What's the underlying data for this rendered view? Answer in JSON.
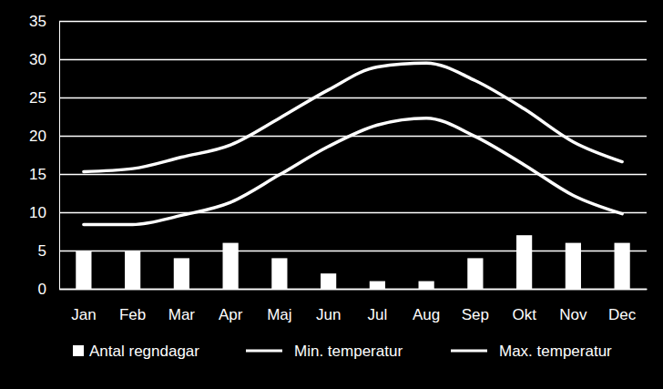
{
  "chart_data": {
    "type": "bar",
    "categories": [
      "Jan",
      "Feb",
      "Mar",
      "Apr",
      "Maj",
      "Jun",
      "Jul",
      "Aug",
      "Sep",
      "Okt",
      "Nov",
      "Dec"
    ],
    "series": [
      {
        "name": "Antal regndagar",
        "type": "bar",
        "color": "#ffffff",
        "values": [
          5,
          5,
          4,
          6,
          4,
          2,
          1,
          1,
          4,
          7,
          6,
          6
        ]
      },
      {
        "name": "Min. temperatur",
        "type": "line",
        "color": "#ffffff",
        "values": [
          8.4,
          8.4,
          9.6,
          11.3,
          14.9,
          18.6,
          21.4,
          22.3,
          19.9,
          16.2,
          12.2,
          9.8
        ]
      },
      {
        "name": "Max. temperatur",
        "type": "line",
        "color": "#ffffff",
        "values": [
          15.3,
          15.7,
          17.2,
          18.8,
          22.3,
          26.0,
          29.0,
          29.5,
          27.2,
          23.5,
          19.2,
          16.6
        ]
      }
    ],
    "ylim": [
      0,
      35
    ],
    "yticks": [
      0,
      5,
      10,
      15,
      20,
      25,
      30,
      35
    ],
    "grid": true,
    "legend": "bottom"
  }
}
